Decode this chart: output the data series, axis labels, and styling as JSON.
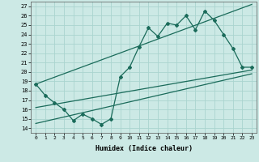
{
  "xlabel": "Humidex (Indice chaleur)",
  "ylabel": "",
  "bg_color": "#cce9e5",
  "grid_color": "#aad4cf",
  "line_color": "#1a6b5a",
  "xlim": [
    -0.5,
    23.5
  ],
  "ylim": [
    13.5,
    27.5
  ],
  "yticks": [
    14,
    15,
    16,
    17,
    18,
    19,
    20,
    21,
    22,
    23,
    24,
    25,
    26,
    27
  ],
  "xticks": [
    0,
    1,
    2,
    3,
    4,
    5,
    6,
    7,
    8,
    9,
    10,
    11,
    12,
    13,
    14,
    15,
    16,
    17,
    18,
    19,
    20,
    21,
    22,
    23
  ],
  "xtick_labels": [
    "0",
    "1",
    "2",
    "3",
    "4",
    "5",
    "6",
    "7",
    "8",
    "9",
    "10",
    "11",
    "12",
    "13",
    "14",
    "15",
    "16",
    "17",
    "18",
    "19",
    "20",
    "21",
    "22",
    "23"
  ],
  "jagged_x": [
    0,
    1,
    2,
    3,
    4,
    5,
    6,
    7,
    8,
    9,
    10,
    11,
    12,
    13,
    14,
    15,
    16,
    17,
    18,
    19,
    20,
    21,
    22,
    23
  ],
  "jagged_y": [
    18.7,
    17.5,
    16.7,
    16.0,
    14.8,
    15.5,
    15.0,
    14.4,
    15.0,
    19.5,
    20.5,
    22.7,
    24.7,
    23.8,
    25.2,
    25.0,
    26.0,
    24.5,
    26.5,
    25.5,
    24.0,
    22.5,
    20.5,
    20.5
  ],
  "line1_x": [
    0,
    23
  ],
  "line1_y": [
    18.7,
    27.2
  ],
  "line2_x": [
    0,
    23
  ],
  "line2_y": [
    16.2,
    20.2
  ],
  "line3_x": [
    0,
    23
  ],
  "line3_y": [
    14.5,
    19.8
  ]
}
